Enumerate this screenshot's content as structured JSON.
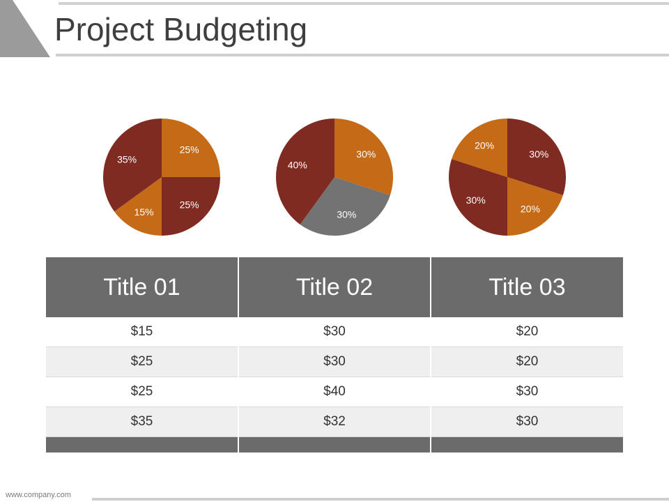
{
  "header": {
    "title": "Project Budgeting"
  },
  "colors": {
    "dark_red": "#7f2b21",
    "orange": "#c56b17",
    "gray": "#737373",
    "header_gray": "#6b6b6b"
  },
  "chart_data": [
    {
      "type": "pie",
      "slices": [
        {
          "label": "25%",
          "value": 25,
          "color": "#c56b17"
        },
        {
          "label": "25%",
          "value": 25,
          "color": "#7f2b21"
        },
        {
          "label": "15%",
          "value": 15,
          "color": "#c56b17"
        },
        {
          "label": "35%",
          "value": 35,
          "color": "#7f2b21"
        }
      ]
    },
    {
      "type": "pie",
      "slices": [
        {
          "label": "30%",
          "value": 30,
          "color": "#c56b17"
        },
        {
          "label": "30%",
          "value": 30,
          "color": "#737373"
        },
        {
          "label": "40%",
          "value": 40,
          "color": "#7f2b21"
        }
      ]
    },
    {
      "type": "pie",
      "slices": [
        {
          "label": "30%",
          "value": 30,
          "color": "#7f2b21"
        },
        {
          "label": "20%",
          "value": 20,
          "color": "#c56b17"
        },
        {
          "label": "30%",
          "value": 30,
          "color": "#7f2b21"
        },
        {
          "label": "20%",
          "value": 20,
          "color": "#c56b17"
        }
      ]
    },
    {
      "type": "table",
      "columns": [
        "Title 01",
        "Title 02",
        "Title 03"
      ],
      "rows": [
        [
          "$15",
          "$30",
          "$20"
        ],
        [
          "$25",
          "$30",
          "$20"
        ],
        [
          "$25",
          "$40",
          "$30"
        ],
        [
          "$35",
          "$32",
          "$30"
        ]
      ]
    }
  ],
  "footer": {
    "url": "www.company.com"
  }
}
